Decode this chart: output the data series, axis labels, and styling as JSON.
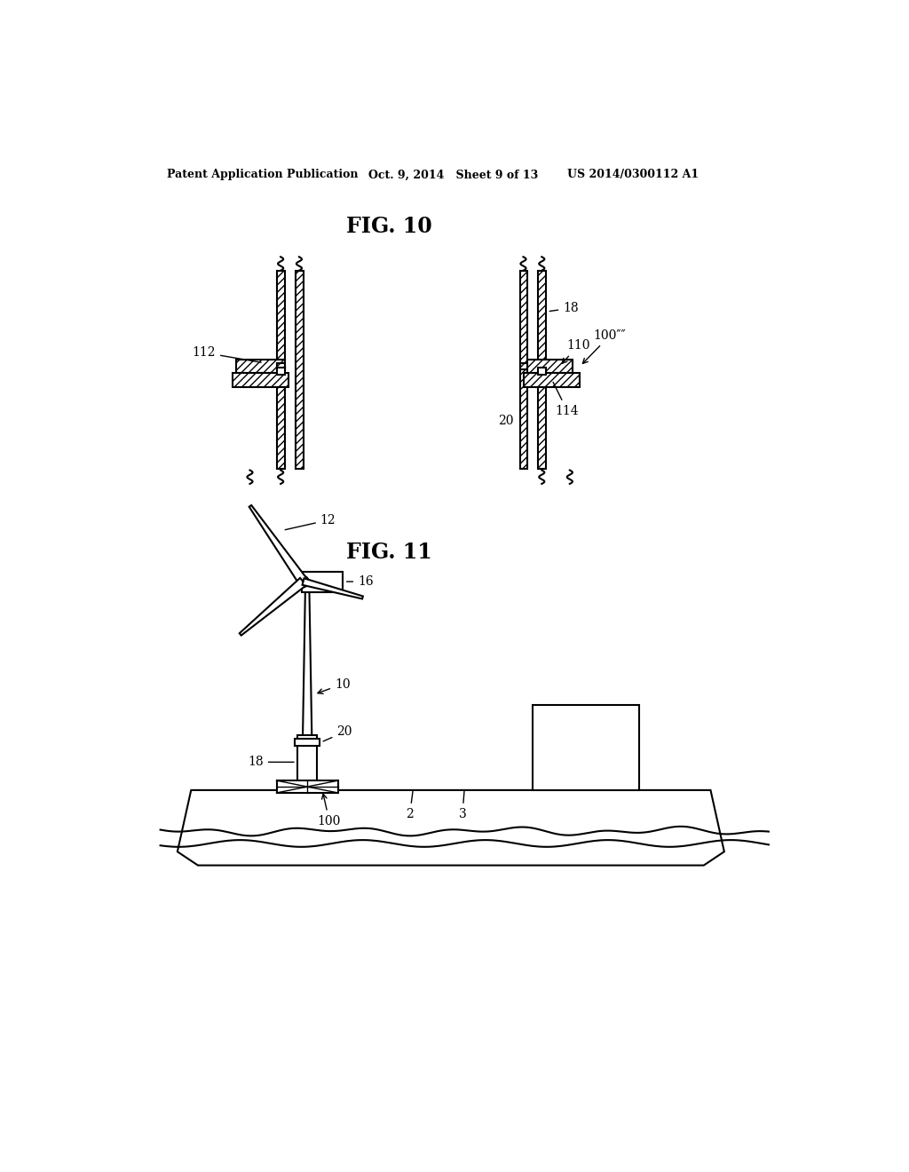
{
  "bg_color": "#ffffff",
  "header_left": "Patent Application Publication",
  "header_mid": "Oct. 9, 2014   Sheet 9 of 13",
  "header_right": "US 2014/0300112 A1",
  "fig10_title": "FIG. 10",
  "fig11_title": "FIG. 11",
  "line_color": "#000000"
}
